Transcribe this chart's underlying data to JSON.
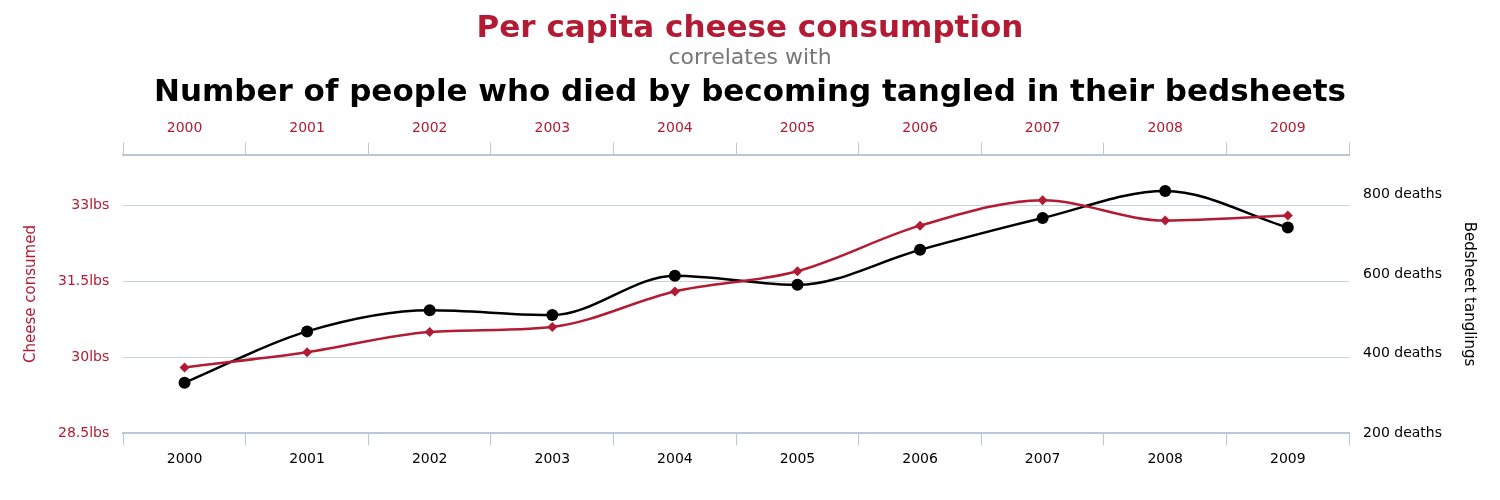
{
  "chart_data": {
    "type": "line",
    "title": "Per capita cheese consumption",
    "subtitle": "correlates with",
    "annotations": [
      "Number of people who died by becoming tangled in their bedsheets"
    ],
    "ylabel": "Cheese consumed",
    "y2label": "Bedsheet tanglings",
    "categories": [
      "2000",
      "2001",
      "2002",
      "2003",
      "2004",
      "2005",
      "2006",
      "2007",
      "2008",
      "2009"
    ],
    "series": [
      {
        "color": "#b31b34",
        "marker": "diamond",
        "values": [
          29.8,
          30.1,
          30.5,
          30.6,
          31.3,
          31.7,
          32.6,
          33.1,
          32.7,
          32.8
        ]
      },
      {
        "color": "#000000",
        "marker": "circle",
        "axis": "y2",
        "values": [
          327,
          456,
          509,
          497,
          596,
          573,
          661,
          741,
          809,
          717
        ]
      }
    ],
    "ylim": [
      28.5,
      34
    ],
    "yticks": [
      {
        "value": 28.5,
        "label": "28.5lbs"
      },
      {
        "value": 30,
        "label": "30lbs"
      },
      {
        "value": 31.5,
        "label": "31.5lbs"
      },
      {
        "value": 33,
        "label": "33lbs"
      }
    ],
    "y2lim": [
      200,
      900
    ],
    "y2ticks": [
      {
        "value": 200,
        "label": "200 deaths"
      },
      {
        "value": 400,
        "label": "400 deaths"
      },
      {
        "value": 600,
        "label": "600 deaths"
      },
      {
        "value": 800,
        "label": "800 deaths"
      }
    ],
    "grid": "y",
    "legend": false,
    "line_style": "solid"
  }
}
